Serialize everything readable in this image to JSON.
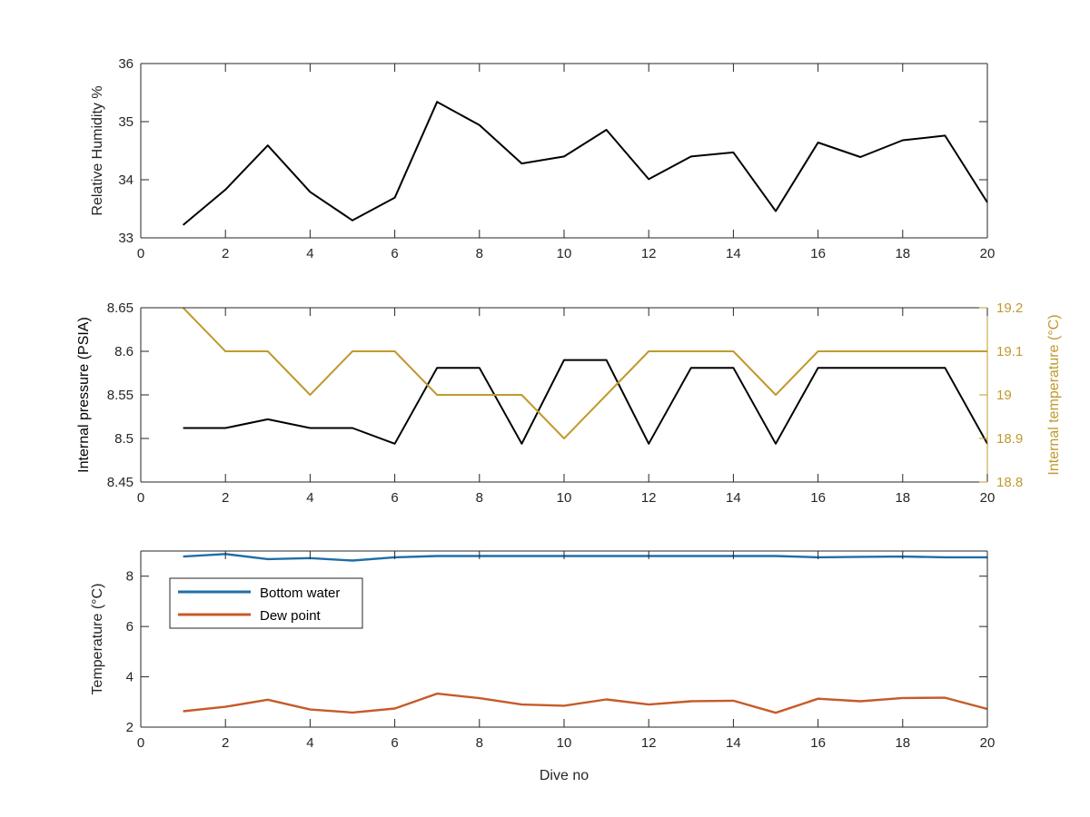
{
  "colors": {
    "black": "#000000",
    "axis": "#262626",
    "right_axis": "#c09a2e",
    "blue": "#1f6ea8",
    "orange": "#c75a28"
  },
  "chart_data": [
    {
      "type": "line",
      "title": "",
      "xlabel": "",
      "ylabel": "Relative Humidity %",
      "xlim": [
        0,
        20
      ],
      "ylim": [
        33,
        36
      ],
      "grid": false,
      "x_ticks": [
        0,
        2,
        4,
        6,
        8,
        10,
        12,
        14,
        16,
        18,
        20
      ],
      "y_ticks": [
        33,
        34,
        35,
        36
      ],
      "x": [
        1,
        2,
        3,
        4,
        5,
        6,
        7,
        8,
        9,
        10,
        11,
        12,
        13,
        14,
        15,
        16,
        17,
        18,
        19,
        20
      ],
      "series": [
        {
          "color": "#000000",
          "values": [
            33.22,
            33.83,
            34.59,
            33.79,
            33.3,
            33.69,
            35.34,
            34.94,
            34.28,
            34.4,
            34.86,
            34.01,
            34.4,
            34.47,
            33.46,
            34.64,
            34.39,
            34.68,
            34.76,
            33.61
          ]
        }
      ]
    },
    {
      "type": "line",
      "title": "",
      "xlabel": "",
      "ylabel": "Internal pressure (PSIA)",
      "y2label": "Internal temperature (°C)",
      "xlim": [
        0,
        20
      ],
      "ylim": [
        8.45,
        8.65
      ],
      "y2lim": [
        18.8,
        19.2
      ],
      "grid": false,
      "x_ticks": [
        0,
        2,
        4,
        6,
        8,
        10,
        12,
        14,
        16,
        18,
        20
      ],
      "y_ticks": [
        "8.45",
        "8.5",
        "8.55",
        "8.6",
        "8.65"
      ],
      "y2_ticks": [
        "18.8",
        "18.9",
        "19",
        "19.1",
        "19.2"
      ],
      "x": [
        1,
        2,
        3,
        4,
        5,
        6,
        7,
        8,
        9,
        10,
        11,
        12,
        13,
        14,
        15,
        16,
        17,
        18,
        19,
        20
      ],
      "series": [
        {
          "axis": "left",
          "color": "#000000",
          "values": [
            8.512,
            8.512,
            8.522,
            8.512,
            8.512,
            8.494,
            8.581,
            8.581,
            8.494,
            8.59,
            8.59,
            8.494,
            8.581,
            8.581,
            8.494,
            8.581,
            8.581,
            8.581,
            8.581,
            8.494
          ]
        },
        {
          "axis": "right",
          "color": "#c09a2e",
          "values": [
            19.2,
            19.1,
            19.1,
            19.0,
            19.1,
            19.1,
            19.0,
            19.0,
            19.0,
            18.9,
            19.0,
            19.1,
            19.1,
            19.1,
            19.0,
            19.1,
            19.1,
            19.1,
            19.1,
            19.1
          ]
        }
      ]
    },
    {
      "type": "line",
      "title": "",
      "xlabel": "Dive no",
      "ylabel": "Temperature (°C)",
      "xlim": [
        0,
        20
      ],
      "ylim": [
        2,
        9
      ],
      "grid": false,
      "legend_position": "top-left",
      "x_ticks": [
        0,
        2,
        4,
        6,
        8,
        10,
        12,
        14,
        16,
        18,
        20
      ],
      "y_ticks": [
        2,
        4,
        6,
        8
      ],
      "x": [
        1,
        2,
        3,
        4,
        5,
        6,
        7,
        8,
        9,
        10,
        11,
        12,
        13,
        14,
        15,
        16,
        17,
        18,
        19,
        20
      ],
      "series": [
        {
          "name": "Bottom water",
          "color": "#1f6ea8",
          "values": [
            8.78,
            8.88,
            8.68,
            8.72,
            8.62,
            8.75,
            8.8,
            8.8,
            8.8,
            8.8,
            8.8,
            8.8,
            8.8,
            8.8,
            8.8,
            8.75,
            8.77,
            8.78,
            8.75,
            8.75
          ]
        },
        {
          "name": "Dew point",
          "color": "#c75a28",
          "values": [
            2.63,
            2.81,
            3.09,
            2.7,
            2.58,
            2.74,
            3.33,
            3.15,
            2.9,
            2.85,
            3.1,
            2.9,
            3.03,
            3.05,
            2.57,
            3.13,
            3.03,
            3.16,
            3.17,
            2.72
          ]
        }
      ]
    }
  ]
}
